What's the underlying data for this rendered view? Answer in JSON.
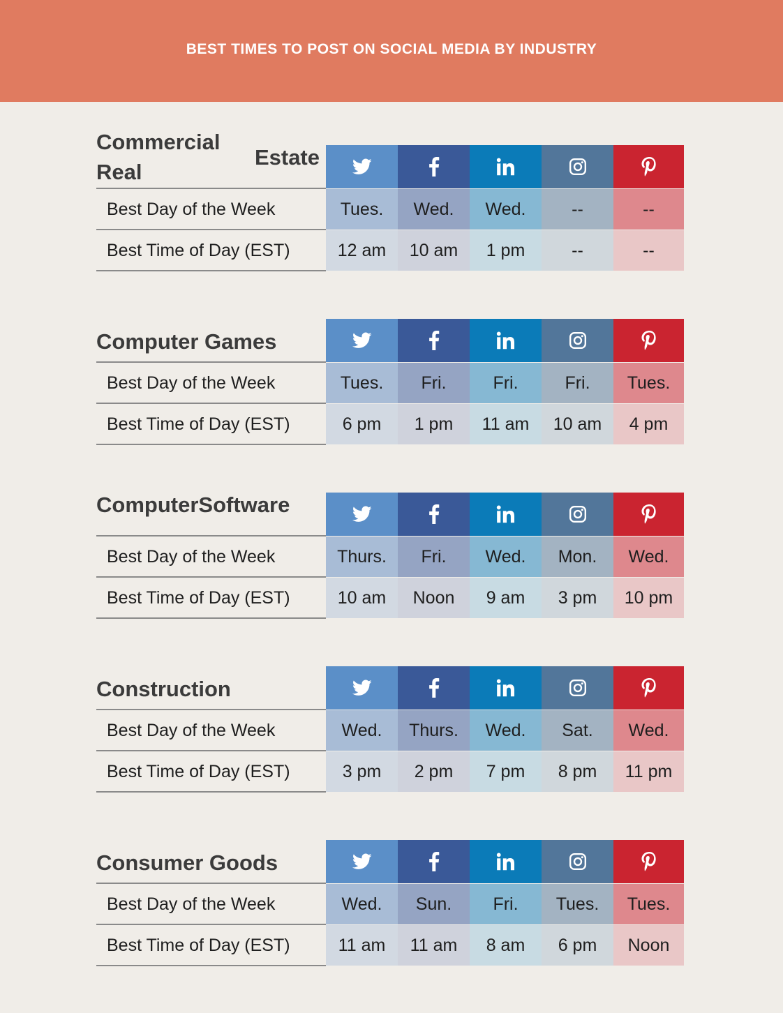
{
  "title": "BEST TIMES TO POST ON SOCIAL MEDIA BY INDUSTRY",
  "networks": [
    {
      "icon": "twitter-icon",
      "header_color": "#5b8fc8",
      "day_color": "#a8bcd6",
      "time_color": "#d2d9e2"
    },
    {
      "icon": "facebook-icon",
      "header_color": "#3a5998",
      "day_color": "#95a4c3",
      "time_color": "#cfd2dc"
    },
    {
      "icon": "linkedin-icon",
      "header_color": "#0b7bb8",
      "day_color": "#86b8d3",
      "time_color": "#c8dbe3"
    },
    {
      "icon": "instagram-icon",
      "header_color": "#52769a",
      "day_color": "#a3b3c2",
      "time_color": "#d0d7dc"
    },
    {
      "icon": "pinterest-icon",
      "header_color": "#ca2430",
      "day_color": "#de888d",
      "time_color": "#e9c7c7"
    }
  ],
  "row_labels": {
    "day": "Best Day of the Week",
    "time": "Best Time of Day (EST)"
  },
  "industries": [
    {
      "name_lines": [
        "Commercial Real",
        "Estate"
      ],
      "days": [
        "Tues.",
        "Wed.",
        "Wed.",
        "--",
        "--"
      ],
      "times": [
        "12 am",
        "10 am",
        "1 pm",
        "--",
        "--"
      ]
    },
    {
      "name_lines": [
        "Computer Games"
      ],
      "days": [
        "Tues.",
        "Fri.",
        "Fri.",
        "Fri.",
        "Tues."
      ],
      "times": [
        "6 pm",
        "1 pm",
        "11 am",
        "10 am",
        "4 pm"
      ]
    },
    {
      "name_lines": [
        "Computer",
        "Software"
      ],
      "days": [
        "Thurs.",
        "Fri.",
        "Wed.",
        "Mon.",
        "Wed."
      ],
      "times": [
        "10 am",
        "Noon",
        "9 am",
        "3 pm",
        "10 pm"
      ]
    },
    {
      "name_lines": [
        "Construction"
      ],
      "days": [
        "Wed.",
        "Thurs.",
        "Wed.",
        "Sat.",
        "Wed."
      ],
      "times": [
        "3 pm",
        "2 pm",
        "7 pm",
        "8 pm",
        "11 pm"
      ]
    },
    {
      "name_lines": [
        "Consumer Goods"
      ],
      "days": [
        "Wed.",
        "Sun.",
        "Fri.",
        "Tues.",
        "Tues."
      ],
      "times": [
        "11 am",
        "11 am",
        "8 am",
        "6 pm",
        "Noon"
      ]
    }
  ]
}
